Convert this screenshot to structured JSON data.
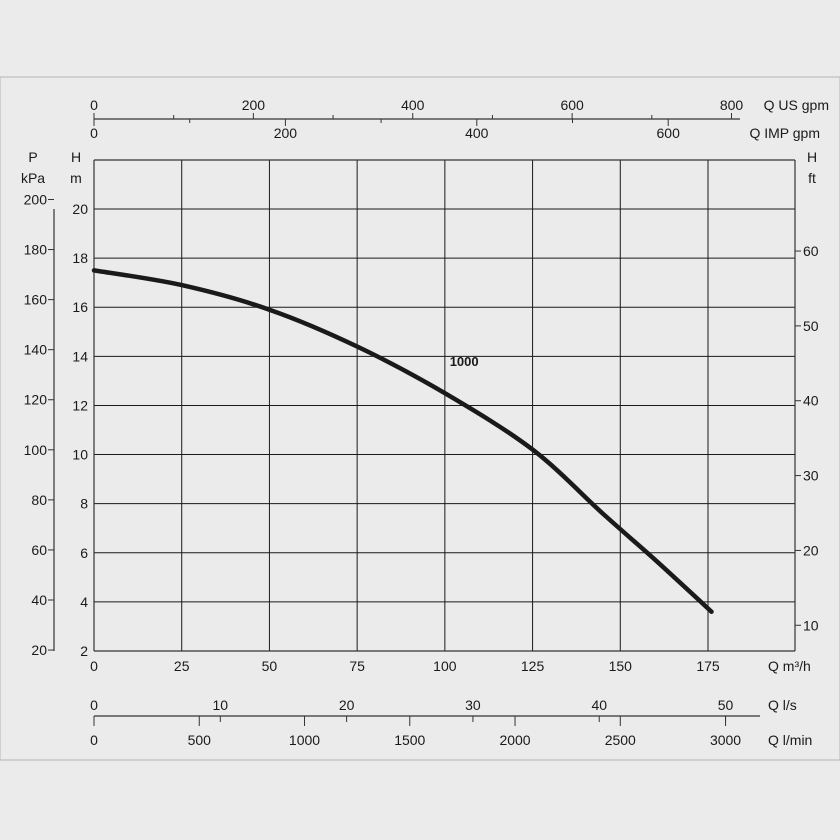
{
  "colors": {
    "background": "#ebebeb",
    "panel": "#ebebeb",
    "frame": "#b5b5b5",
    "grid": "#1a1a1a",
    "curve": "#1a1a1a",
    "text": "#1a1a1a"
  },
  "chart_data": {
    "type": "line",
    "title": "",
    "grid": true,
    "series": [
      {
        "name": "1000",
        "x": [
          0,
          25,
          50,
          75,
          100,
          125,
          145,
          160,
          176
        ],
        "y": [
          17.5,
          16.9,
          15.9,
          14.4,
          12.5,
          10.2,
          7.6,
          5.7,
          3.6
        ]
      }
    ],
    "axes": {
      "x_primary": {
        "label": "Q m³/h",
        "range": [
          0,
          175
        ],
        "ticks": [
          0,
          25,
          50,
          75,
          100,
          125,
          150,
          175
        ],
        "tick_labels": [
          "0",
          "25",
          "50",
          "75",
          "100",
          "125",
          "150",
          "175"
        ]
      },
      "x_ls": {
        "label": "Q l/s",
        "ticks": [
          0,
          10,
          20,
          30,
          40,
          50
        ],
        "tick_labels": [
          "0",
          "10",
          "20",
          "30",
          "40",
          "50"
        ]
      },
      "x_lmin": {
        "label": "Q l/min",
        "ticks": [
          0,
          500,
          1000,
          1500,
          2000,
          2500,
          3000
        ],
        "tick_labels": [
          "0",
          "500",
          "1000",
          "1500",
          "2000",
          "2500",
          "3000"
        ]
      },
      "x_usgpm": {
        "label": "Q US gpm",
        "ticks": [
          0,
          200,
          400,
          600,
          800
        ],
        "tick_labels": [
          "0",
          "200",
          "400",
          "600",
          "800"
        ]
      },
      "x_impgpm": {
        "label": "Q IMP gpm",
        "ticks": [
          0,
          200,
          400,
          600
        ],
        "tick_labels": [
          "0",
          "200",
          "400",
          "600"
        ]
      },
      "y_primary": {
        "label_line1": "H",
        "label_line2": "m",
        "range": [
          2,
          20
        ],
        "ticks": [
          2,
          4,
          6,
          8,
          10,
          12,
          14,
          16,
          18,
          20
        ],
        "tick_labels": [
          "2",
          "4",
          "6",
          "8",
          "10",
          "12",
          "14",
          "16",
          "18",
          "20"
        ]
      },
      "y_kpa": {
        "label_line1": "P",
        "label_line2": "kPa",
        "ticks": [
          20,
          40,
          60,
          80,
          100,
          120,
          140,
          160,
          180,
          200
        ],
        "tick_labels": [
          "20",
          "40",
          "60",
          "80",
          "100",
          "120",
          "140",
          "160",
          "180",
          "200"
        ]
      },
      "y_ft": {
        "label_line1": "H",
        "label_line2": "ft",
        "ticks": [
          10,
          20,
          30,
          40,
          50,
          60
        ],
        "tick_labels": [
          "10",
          "20",
          "30",
          "40",
          "50",
          "60"
        ]
      }
    }
  }
}
